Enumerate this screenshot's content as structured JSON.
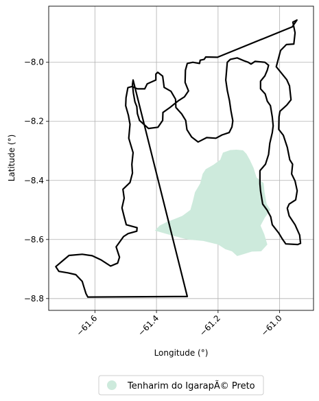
{
  "map": {
    "x_axis_label": "Longitude (°)",
    "y_axis_label": "Latitude (°)",
    "x_ticks": [
      {
        "value": -61.6,
        "label": "−61.6"
      },
      {
        "value": -61.4,
        "label": "−61.4"
      },
      {
        "value": -61.2,
        "label": "−61.2"
      },
      {
        "value": -61.0,
        "label": "−61.0"
      }
    ],
    "y_ticks": [
      {
        "value": -8.0,
        "label": "−8.0"
      },
      {
        "value": -8.2,
        "label": "−8.2"
      },
      {
        "value": -8.4,
        "label": "−8.4"
      },
      {
        "value": -8.6,
        "label": "−8.6"
      },
      {
        "value": -8.8,
        "label": "−8.8"
      }
    ],
    "xlim": [
      -61.75,
      -60.89
    ],
    "ylim": [
      -8.84,
      -7.81
    ],
    "grid": true,
    "legend_placement": "bottom-center, below the plot",
    "legend": [
      {
        "label": "Tenharim do IgarapÃ© Preto",
        "color": "#cdeadc"
      }
    ],
    "boundary_color": "#000000",
    "territory_color": "#cdeadc",
    "boundary_coords": [
      [
        -61.623,
        -8.795
      ],
      [
        -61.629,
        -8.783
      ],
      [
        -61.636,
        -8.76
      ],
      [
        -61.641,
        -8.742
      ],
      [
        -61.662,
        -8.719
      ],
      [
        -61.687,
        -8.713
      ],
      [
        -61.717,
        -8.708
      ],
      [
        -61.727,
        -8.692
      ],
      [
        -61.708,
        -8.675
      ],
      [
        -61.684,
        -8.654
      ],
      [
        -61.641,
        -8.65
      ],
      [
        -61.609,
        -8.655
      ],
      [
        -61.58,
        -8.669
      ],
      [
        -61.549,
        -8.69
      ],
      [
        -61.526,
        -8.68
      ],
      [
        -61.52,
        -8.66
      ],
      [
        -61.531,
        -8.625
      ],
      [
        -61.507,
        -8.59
      ],
      [
        -61.492,
        -8.58
      ],
      [
        -61.464,
        -8.572
      ],
      [
        -61.463,
        -8.56
      ],
      [
        -61.498,
        -8.55
      ],
      [
        -61.505,
        -8.523
      ],
      [
        -61.512,
        -8.493
      ],
      [
        -61.505,
        -8.46
      ],
      [
        -61.509,
        -8.43
      ],
      [
        -61.486,
        -8.407
      ],
      [
        -61.478,
        -8.375
      ],
      [
        -61.48,
        -8.346
      ],
      [
        -61.476,
        -8.306
      ],
      [
        -61.49,
        -8.257
      ],
      [
        -61.486,
        -8.21
      ],
      [
        -61.491,
        -8.18
      ],
      [
        -61.5,
        -8.147
      ],
      [
        -61.499,
        -8.12
      ],
      [
        -61.493,
        -8.086
      ],
      [
        -61.48,
        -8.082
      ],
      [
        -61.462,
        -8.09
      ],
      [
        -61.438,
        -8.09
      ],
      [
        -61.43,
        -8.073
      ],
      [
        -61.402,
        -8.06
      ],
      [
        -61.402,
        -8.04
      ],
      [
        -61.396,
        -8.034
      ],
      [
        -61.38,
        -8.047
      ],
      [
        -61.375,
        -8.085
      ],
      [
        -61.353,
        -8.098
      ],
      [
        -61.338,
        -8.125
      ],
      [
        -61.337,
        -8.153
      ],
      [
        -61.318,
        -8.175
      ],
      [
        -61.305,
        -8.197
      ],
      [
        -61.301,
        -8.228
      ],
      [
        -61.286,
        -8.253
      ],
      [
        -61.265,
        -8.27
      ],
      [
        -61.237,
        -8.255
      ],
      [
        -61.207,
        -8.257
      ],
      [
        -61.187,
        -8.246
      ],
      [
        -61.164,
        -8.238
      ],
      [
        -61.155,
        -8.219
      ],
      [
        -61.152,
        -8.198
      ],
      [
        -61.158,
        -8.165
      ],
      [
        -61.163,
        -8.13
      ],
      [
        -61.17,
        -8.095
      ],
      [
        -61.175,
        -8.06
      ],
      [
        -61.17,
        -8.0
      ],
      [
        -61.16,
        -7.99
      ],
      [
        -61.138,
        -7.985
      ],
      [
        -61.115,
        -7.995
      ],
      [
        -61.102,
        -8.0
      ],
      [
        -61.093,
        -8.006
      ],
      [
        -61.08,
        -7.997
      ],
      [
        -61.048,
        -8.0
      ],
      [
        -61.036,
        -8.01
      ],
      [
        -61.04,
        -8.026
      ],
      [
        -61.048,
        -8.046
      ],
      [
        -61.062,
        -8.064
      ],
      [
        -61.062,
        -8.09
      ],
      [
        -61.047,
        -8.107
      ],
      [
        -61.04,
        -8.132
      ],
      [
        -61.03,
        -8.147
      ],
      [
        -61.024,
        -8.185
      ],
      [
        -61.021,
        -8.215
      ],
      [
        -61.024,
        -8.238
      ],
      [
        -61.032,
        -8.274
      ],
      [
        -61.036,
        -8.312
      ],
      [
        -61.046,
        -8.345
      ],
      [
        -61.064,
        -8.367
      ],
      [
        -61.064,
        -8.412
      ],
      [
        -61.062,
        -8.436
      ],
      [
        -61.055,
        -8.48
      ],
      [
        -61.041,
        -8.5
      ],
      [
        -61.029,
        -8.523
      ],
      [
        -61.024,
        -8.55
      ],
      [
        -61.003,
        -8.578
      ],
      [
        -60.991,
        -8.599
      ],
      [
        -60.98,
        -8.615
      ],
      [
        -60.941,
        -8.617
      ],
      [
        -60.932,
        -8.613
      ],
      [
        -60.935,
        -8.585
      ],
      [
        -60.95,
        -8.55
      ],
      [
        -60.969,
        -8.52
      ],
      [
        -60.975,
        -8.494
      ],
      [
        -60.969,
        -8.48
      ],
      [
        -60.948,
        -8.466
      ],
      [
        -60.943,
        -8.435
      ],
      [
        -60.95,
        -8.402
      ],
      [
        -60.961,
        -8.378
      ],
      [
        -60.958,
        -8.345
      ],
      [
        -60.967,
        -8.33
      ],
      [
        -60.975,
        -8.288
      ],
      [
        -60.988,
        -8.247
      ],
      [
        -61.003,
        -8.227
      ],
      [
        -61.002,
        -8.185
      ],
      [
        -60.999,
        -8.166
      ],
      [
        -60.977,
        -8.145
      ],
      [
        -60.963,
        -8.127
      ],
      [
        -60.968,
        -8.08
      ],
      [
        -60.977,
        -8.059
      ],
      [
        -61.011,
        -8.015
      ],
      [
        -60.997,
        -7.96
      ],
      [
        -60.978,
        -7.94
      ],
      [
        -60.954,
        -7.938
      ],
      [
        -60.95,
        -7.9
      ],
      [
        -60.957,
        -7.864
      ],
      [
        -60.944,
        -7.857
      ],
      [
        -60.959,
        -7.88
      ],
      [
        -61.202,
        -7.983
      ],
      [
        -61.24,
        -7.982
      ],
      [
        -61.245,
        -7.99
      ],
      [
        -61.258,
        -7.993
      ],
      [
        -61.26,
        -8.004
      ],
      [
        -61.282,
        -8.0
      ],
      [
        -61.3,
        -8.004
      ],
      [
        -61.306,
        -8.027
      ],
      [
        -61.307,
        -8.068
      ],
      [
        -61.296,
        -8.097
      ],
      [
        -61.309,
        -8.117
      ],
      [
        -61.33,
        -8.131
      ],
      [
        -61.356,
        -8.153
      ],
      [
        -61.379,
        -8.17
      ],
      [
        -61.38,
        -8.197
      ],
      [
        -61.395,
        -8.22
      ],
      [
        -61.426,
        -8.224
      ],
      [
        -61.455,
        -8.197
      ],
      [
        -61.462,
        -8.174
      ],
      [
        -61.464,
        -8.15
      ],
      [
        -61.47,
        -8.134
      ],
      [
        -61.475,
        -8.104
      ],
      [
        -61.478,
        -8.075
      ],
      [
        -61.476,
        -8.06
      ],
      [
        -61.3,
        -8.793
      ],
      [
        -61.623,
        -8.795
      ]
    ],
    "territory_coords": [
      [
        -61.405,
        -8.57
      ],
      [
        -61.355,
        -8.585
      ],
      [
        -61.3,
        -8.6
      ],
      [
        -61.248,
        -8.605
      ],
      [
        -61.2,
        -8.617
      ],
      [
        -61.176,
        -8.633
      ],
      [
        -61.155,
        -8.64
      ],
      [
        -61.138,
        -8.656
      ],
      [
        -61.118,
        -8.65
      ],
      [
        -61.09,
        -8.641
      ],
      [
        -61.06,
        -8.64
      ],
      [
        -61.04,
        -8.617
      ],
      [
        -61.05,
        -8.582
      ],
      [
        -61.062,
        -8.553
      ],
      [
        -61.048,
        -8.526
      ],
      [
        -61.03,
        -8.5
      ],
      [
        -61.042,
        -8.48
      ],
      [
        -61.049,
        -8.44
      ],
      [
        -61.052,
        -8.409
      ],
      [
        -61.075,
        -8.39
      ],
      [
        -61.085,
        -8.357
      ],
      [
        -61.097,
        -8.33
      ],
      [
        -61.108,
        -8.31
      ],
      [
        -61.119,
        -8.298
      ],
      [
        -61.14,
        -8.296
      ],
      [
        -61.16,
        -8.297
      ],
      [
        -61.184,
        -8.306
      ],
      [
        -61.193,
        -8.33
      ],
      [
        -61.215,
        -8.347
      ],
      [
        -61.24,
        -8.362
      ],
      [
        -61.25,
        -8.378
      ],
      [
        -61.258,
        -8.41
      ],
      [
        -61.275,
        -8.44
      ],
      [
        -61.282,
        -8.47
      ],
      [
        -61.29,
        -8.5
      ],
      [
        -61.316,
        -8.52
      ],
      [
        -61.34,
        -8.53
      ],
      [
        -61.365,
        -8.54
      ],
      [
        -61.39,
        -8.553
      ],
      [
        -61.405,
        -8.57
      ]
    ]
  }
}
